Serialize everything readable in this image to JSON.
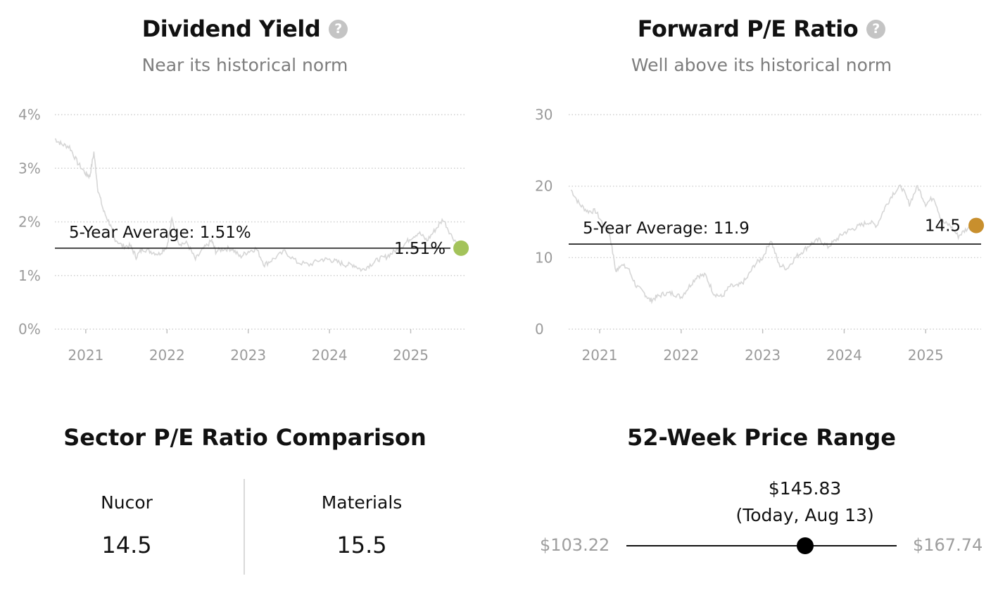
{
  "dividend": {
    "title": "Dividend Yield",
    "help_icon": "question-mark-icon",
    "subtitle": "Near its historical norm",
    "avg_label": "5-Year Average: 1.51%",
    "current_label": "1.51%",
    "dot_color": "#a3c35a"
  },
  "pe": {
    "title": "Forward P/E Ratio",
    "help_icon": "question-mark-icon",
    "subtitle": "Well above its historical norm",
    "avg_label": "5-Year Average: 11.9",
    "current_label": "14.5",
    "dot_color": "#c88f2d"
  },
  "sector": {
    "title": "Sector P/E Ratio Comparison",
    "left_name": "Nucor",
    "left_value": "14.5",
    "right_name": "Materials",
    "right_value": "15.5"
  },
  "range": {
    "title": "52-Week Price Range",
    "low": "$103.22",
    "high": "$167.74",
    "current_price": "$145.83",
    "current_note": "(Today, Aug 13)",
    "low_value": 103.22,
    "high_value": 167.74,
    "current_value": 145.83
  },
  "chart_data": [
    {
      "type": "line",
      "title": "Dividend Yield",
      "subtitle": "Near its historical norm",
      "ylim": [
        0,
        4
      ],
      "y_ticks": [
        "0%",
        "1%",
        "2%",
        "3%",
        "4%"
      ],
      "y_tick_values": [
        0,
        1,
        2,
        3,
        4
      ],
      "x_ticks": [
        "2021",
        "2022",
        "2023",
        "2024",
        "2025"
      ],
      "x_tick_values": [
        2021,
        2022,
        2023,
        2024,
        2025
      ],
      "xlim": [
        2020.62,
        2025.68
      ],
      "grid": true,
      "average": 1.51,
      "current": {
        "x": 2025.62,
        "y": 1.51
      },
      "series": [
        {
          "x": [
            2020.62,
            2020.7,
            2020.8,
            2020.9,
            2021.0,
            2021.05,
            2021.1,
            2021.15,
            2021.22,
            2021.3,
            2021.35,
            2021.45,
            2021.55,
            2021.62,
            2021.7,
            2021.8,
            2021.9,
            2022.0,
            2022.06,
            2022.15,
            2022.25,
            2022.35,
            2022.45,
            2022.55,
            2022.6,
            2022.7,
            2022.8,
            2022.9,
            2023.0,
            2023.1,
            2023.2,
            2023.3,
            2023.45,
            2023.6,
            2023.75,
            2023.9,
            2024.0,
            2024.1,
            2024.2,
            2024.3,
            2024.4,
            2024.5,
            2024.6,
            2024.7,
            2024.8,
            2024.9,
            2025.0,
            2025.1,
            2025.2,
            2025.3,
            2025.4,
            2025.5,
            2025.62
          ],
          "y": [
            3.55,
            3.45,
            3.4,
            3.1,
            2.9,
            2.85,
            3.3,
            2.6,
            2.2,
            1.95,
            1.7,
            1.55,
            1.55,
            1.35,
            1.5,
            1.45,
            1.4,
            1.55,
            2.05,
            1.6,
            1.6,
            1.3,
            1.5,
            1.65,
            1.45,
            1.5,
            1.5,
            1.35,
            1.45,
            1.5,
            1.2,
            1.3,
            1.45,
            1.25,
            1.2,
            1.3,
            1.3,
            1.25,
            1.2,
            1.2,
            1.1,
            1.2,
            1.3,
            1.35,
            1.45,
            1.55,
            1.7,
            1.8,
            1.65,
            1.85,
            2.05,
            1.75,
            1.51
          ]
        }
      ]
    },
    {
      "type": "line",
      "title": "Forward P/E Ratio",
      "subtitle": "Well above its historical norm",
      "ylim": [
        0,
        30
      ],
      "y_ticks": [
        "0",
        "10",
        "20",
        "30"
      ],
      "y_tick_values": [
        0,
        10,
        20,
        30
      ],
      "x_ticks": [
        "2021",
        "2022",
        "2023",
        "2024",
        "2025"
      ],
      "x_tick_values": [
        2021,
        2022,
        2023,
        2024,
        2025
      ],
      "xlim": [
        2020.62,
        2025.68
      ],
      "grid": true,
      "average": 11.9,
      "current": {
        "x": 2025.62,
        "y": 14.5
      },
      "series": [
        {
          "x": [
            2020.65,
            2020.75,
            2020.85,
            2020.95,
            2021.05,
            2021.12,
            2021.2,
            2021.25,
            2021.35,
            2021.45,
            2021.55,
            2021.62,
            2021.7,
            2021.8,
            2021.9,
            2022.0,
            2022.1,
            2022.2,
            2022.3,
            2022.4,
            2022.5,
            2022.6,
            2022.7,
            2022.8,
            2022.9,
            2023.0,
            2023.1,
            2023.2,
            2023.3,
            2023.4,
            2023.5,
            2023.6,
            2023.7,
            2023.8,
            2023.9,
            2024.0,
            2024.1,
            2024.2,
            2024.3,
            2024.4,
            2024.5,
            2024.6,
            2024.7,
            2024.8,
            2024.9,
            2025.0,
            2025.1,
            2025.2,
            2025.3,
            2025.4,
            2025.5,
            2025.62
          ],
          "y": [
            19.5,
            17.5,
            16.5,
            16.5,
            14.5,
            13.5,
            8.0,
            9.0,
            8.5,
            6.0,
            5.0,
            4.0,
            4.5,
            5.0,
            5.0,
            4.5,
            6.0,
            7.5,
            7.5,
            5.0,
            4.5,
            6.0,
            6.0,
            7.0,
            9.0,
            10.0,
            12.5,
            9.0,
            8.5,
            10.0,
            11.0,
            12.0,
            12.5,
            11.5,
            12.5,
            13.5,
            14.0,
            14.5,
            15.0,
            14.5,
            17.0,
            19.0,
            20.0,
            17.5,
            20.0,
            17.5,
            18.5,
            15.0,
            14.5,
            13.0,
            14.0,
            14.5
          ]
        }
      ]
    }
  ]
}
